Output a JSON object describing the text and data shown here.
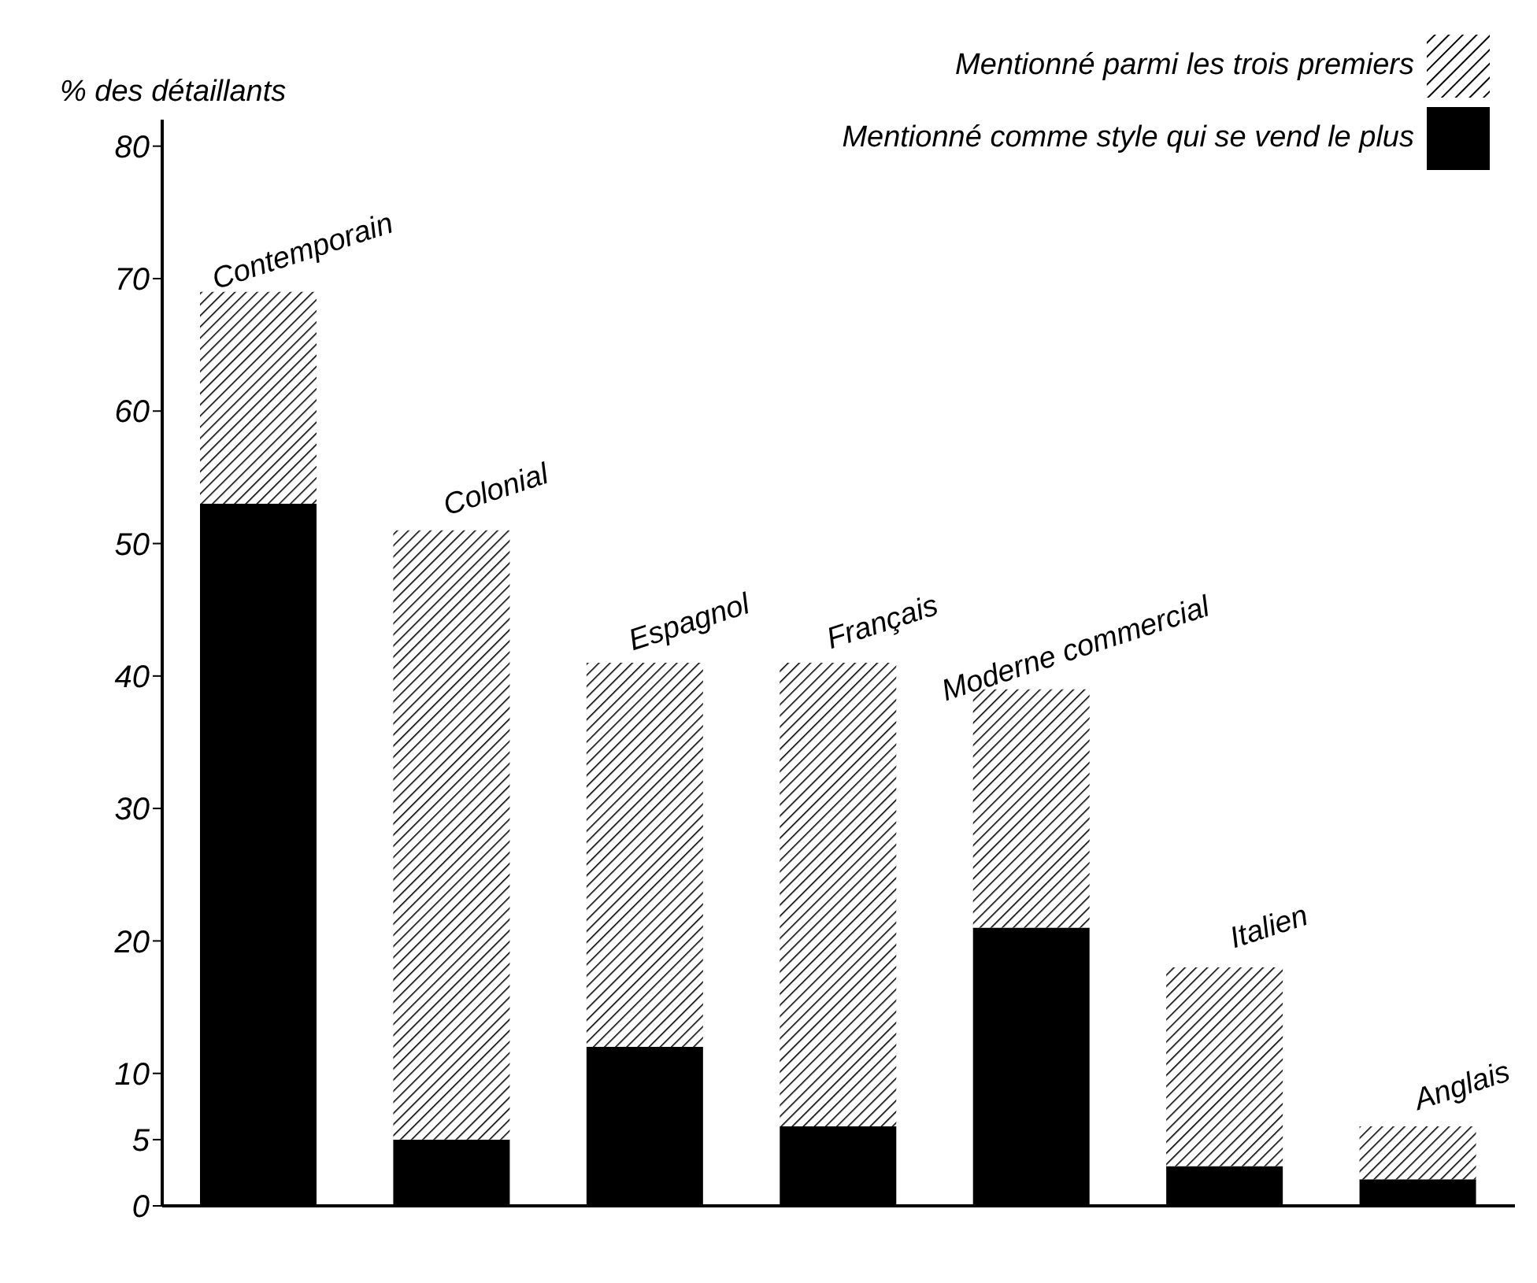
{
  "chart_data": {
    "type": "bar",
    "ylabel": "% des détaillants",
    "categories": [
      "Contemporain",
      "Colonial",
      "Espagnol",
      "Français",
      "Moderne commercial",
      "Italien",
      "Anglais"
    ],
    "stacked": true,
    "series": [
      {
        "name": "Mentionné comme style qui se vend le plus",
        "color": "#000000",
        "values": [
          53,
          5,
          12,
          6,
          21,
          3,
          2
        ]
      },
      {
        "name": "Mentionné parmi les trois premiers",
        "color": "#000000",
        "values": [
          16,
          46,
          29,
          35,
          18,
          15,
          4
        ]
      }
    ],
    "ylim": [
      0,
      82
    ],
    "yticks": [
      0,
      5,
      10,
      20,
      30,
      40,
      50,
      60,
      70,
      80
    ],
    "tick_labels": "y",
    "legend": "top right"
  }
}
